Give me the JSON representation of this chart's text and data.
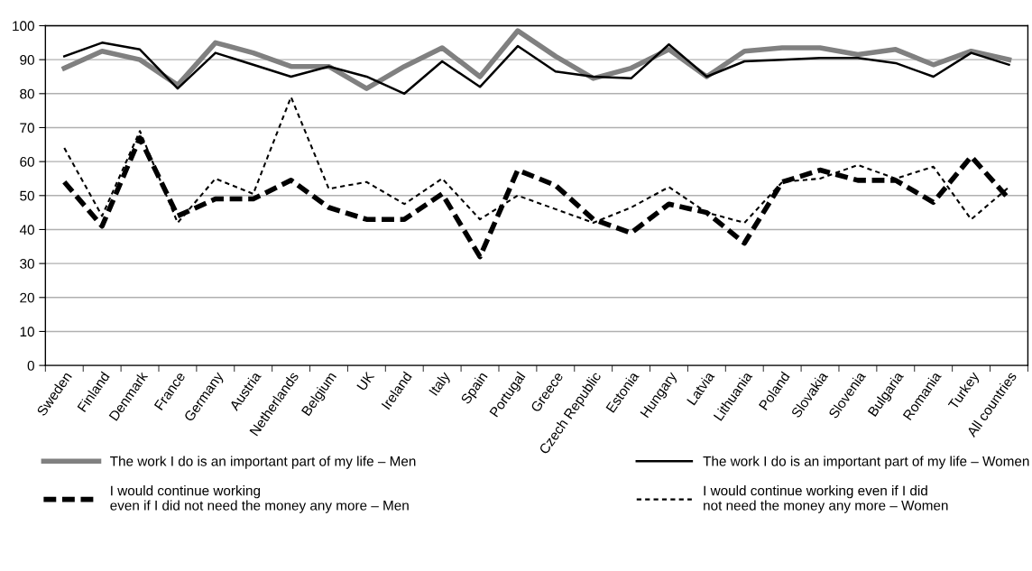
{
  "chart_data": {
    "type": "line",
    "categories": [
      "Sweden",
      "Finland",
      "Denmark",
      "France",
      "Germany",
      "Austria",
      "Netherlands",
      "Belgium",
      "UK",
      "Ireland",
      "Italy",
      "Spain",
      "Portugal",
      "Greece",
      "Czech Republic",
      "Estonia",
      "Hungary",
      "Latvia",
      "Lithuania",
      "Poland",
      "Slovakia",
      "Slovenia",
      "Bulgaria",
      "Romania",
      "Turkey",
      "All countries"
    ],
    "series": [
      {
        "name": "The work I do is an important part of my life – Men",
        "color": "#808080",
        "line_style": "solid",
        "values": [
          87.5,
          92.5,
          90,
          82.5,
          95,
          92,
          88,
          88,
          81.5,
          88,
          93.5,
          85,
          98.5,
          91,
          84.5,
          87.5,
          93,
          85,
          92.5,
          93.5,
          93.5,
          91.5,
          93,
          88.5,
          92.5,
          90
        ]
      },
      {
        "name": "The work I do is an important part of my life – Women",
        "color": "#000000",
        "line_style": "solid",
        "values": [
          91,
          95,
          93,
          81.5,
          92,
          88.5,
          85,
          88,
          85,
          80,
          89.5,
          82,
          94,
          86.5,
          85,
          84.5,
          94.5,
          85,
          89.5,
          90,
          90.5,
          90.5,
          89,
          85,
          92,
          88.5
        ]
      },
      {
        "name": "I would continue working\neven if I did not need the money any more – Men",
        "color": "#000000",
        "line_style": "dashed",
        "values": [
          54,
          41,
          67,
          44,
          49,
          49,
          54.5,
          46.5,
          43,
          43,
          50.5,
          32,
          57.5,
          53,
          43,
          39,
          47.5,
          45,
          36,
          54,
          57.5,
          54.5,
          54.5,
          48,
          61.5,
          49
        ]
      },
      {
        "name": "I would continue working even if I did\nnot need the money any more – Women",
        "color": "#000000",
        "line_style": "dotted",
        "values": [
          64,
          44,
          69,
          42,
          55,
          50.5,
          79,
          52,
          54,
          47.5,
          55,
          43,
          50,
          46,
          42,
          46.5,
          52.5,
          45,
          42,
          54,
          55,
          59,
          55,
          58.5,
          43,
          52.5
        ]
      }
    ],
    "ylim": [
      0,
      100
    ],
    "yticks": [
      0,
      10,
      20,
      30,
      40,
      50,
      60,
      70,
      80,
      90,
      100
    ],
    "grid": "y",
    "legend": "bottom",
    "marker": "none"
  }
}
